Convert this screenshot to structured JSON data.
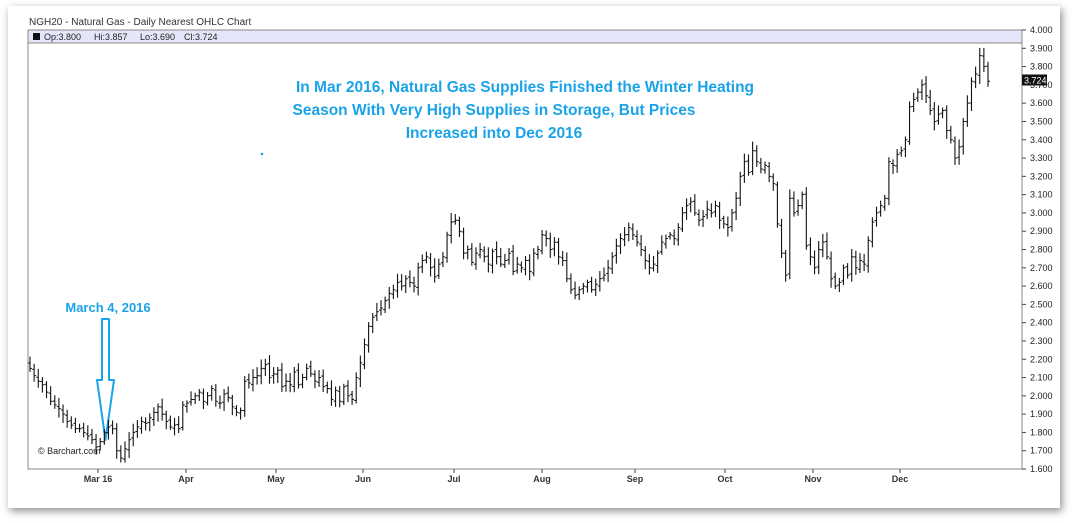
{
  "chart_title": "NGH20 - Natural Gas - Daily Nearest OHLC Chart",
  "legend": {
    "op": "Op:3.800",
    "hi": "Hi:3.857",
    "lo": "Lo:3.690",
    "cl": "Cl:3.724"
  },
  "last_price_label": "3.724",
  "annotation_lines": [
    "In Mar 2016, Natural Gas Supplies Finished the Winter Heating",
    "Season With Very High Supplies in Storage, But Prices",
    "Increased into Dec 2016"
  ],
  "callout_label": "March 4, 2016",
  "watermark": "© Barchart.com",
  "colors": {
    "accent": "#1aa3e8",
    "bars": "#111111",
    "legend_band": "#e6e6fa",
    "last_label_bg": "#111111"
  },
  "chart_data": {
    "type": "ohlc",
    "ylim": [
      1.6,
      4.0
    ],
    "y_ticks": [
      "1.600",
      "1.700",
      "1.800",
      "1.900",
      "2.000",
      "2.100",
      "2.200",
      "2.300",
      "2.400",
      "2.500",
      "2.600",
      "2.700",
      "2.800",
      "2.900",
      "3.000",
      "3.100",
      "3.200",
      "3.300",
      "3.400",
      "3.500",
      "3.600",
      "3.700",
      "3.800",
      "3.900",
      "4.000"
    ],
    "x_ticks": [
      "Mar 16",
      "Apr",
      "May",
      "Jun",
      "Jul",
      "Aug",
      "Sep",
      "Oct",
      "Nov",
      "Dec"
    ],
    "grid": false,
    "series": [
      {
        "values": [
          2.15,
          2.11,
          2.08,
          2.06,
          2.02,
          1.97,
          1.95,
          1.93,
          1.9,
          1.86,
          1.84,
          1.82,
          1.82,
          1.8,
          1.78,
          1.76,
          1.72,
          1.75,
          1.8,
          1.83,
          1.82,
          1.7,
          1.66,
          1.71,
          1.76,
          1.8,
          1.83,
          1.86,
          1.85,
          1.88,
          1.91,
          1.94,
          1.9,
          1.86,
          1.83,
          1.84,
          1.82,
          1.95,
          1.96,
          1.98,
          2.0,
          2.02,
          1.97,
          2.0,
          2.04,
          1.97,
          1.96,
          2.01,
          1.99,
          1.94,
          1.91,
          1.92,
          2.08,
          2.07,
          2.1,
          2.11,
          2.15,
          2.17,
          2.1,
          2.12,
          2.14,
          2.05,
          2.08,
          2.06,
          2.13,
          2.06,
          2.1,
          2.15,
          2.12,
          2.08,
          2.1,
          2.05,
          2.04,
          1.98,
          2.03,
          1.97,
          2.05,
          2.0,
          1.98,
          2.1,
          2.18,
          2.28,
          2.38,
          2.43,
          2.46,
          2.48,
          2.52,
          2.56,
          2.58,
          2.62,
          2.6,
          2.64,
          2.62,
          2.6,
          2.7,
          2.74,
          2.76,
          2.7,
          2.65,
          2.72,
          2.76,
          2.88,
          2.95,
          2.96,
          2.9,
          2.78,
          2.8,
          2.73,
          2.78,
          2.8,
          2.76,
          2.72,
          2.79,
          2.76,
          2.72,
          2.74,
          2.78,
          2.68,
          2.72,
          2.7,
          2.74,
          2.68,
          2.78,
          2.8,
          2.88,
          2.86,
          2.8,
          2.84,
          2.76,
          2.74,
          2.64,
          2.58,
          2.55,
          2.58,
          2.6,
          2.62,
          2.58,
          2.61,
          2.64,
          2.66,
          2.7,
          2.76,
          2.82,
          2.86,
          2.88,
          2.92,
          2.88,
          2.84,
          2.8,
          2.74,
          2.7,
          2.72,
          2.78,
          2.84,
          2.86,
          2.88,
          2.86,
          2.92,
          3.0,
          3.04,
          3.06,
          3.0,
          2.96,
          2.98,
          3.02,
          3.0,
          3.04,
          2.96,
          2.94,
          2.92,
          3.0,
          3.08,
          3.2,
          3.28,
          3.22,
          3.34,
          3.28,
          3.24,
          3.26,
          3.2,
          3.16,
          2.94,
          2.78,
          2.66,
          3.08,
          3.0,
          3.04,
          3.1,
          2.82,
          2.76,
          2.7,
          2.8,
          2.84,
          2.76,
          2.64,
          2.6,
          2.62,
          2.7,
          2.66,
          2.76,
          2.7,
          2.74,
          2.72,
          2.85,
          2.95,
          3.0,
          3.04,
          3.08,
          3.28,
          3.26,
          3.32,
          3.34,
          3.4,
          3.58,
          3.62,
          3.66,
          3.7,
          3.64,
          3.56,
          3.5,
          3.54,
          3.56,
          3.45,
          3.4,
          3.3,
          3.36,
          3.5,
          3.6,
          3.72,
          3.76,
          3.86,
          3.8,
          3.72
        ]
      }
    ],
    "markers": [
      {
        "label": "March 4, 2016",
        "x_label": "Mar 16",
        "y": 1.66
      }
    ]
  }
}
